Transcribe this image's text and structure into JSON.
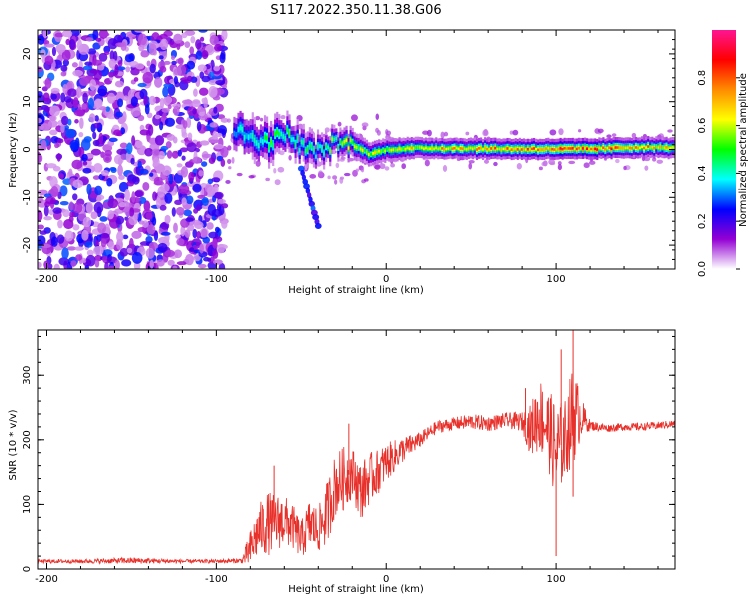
{
  "figure_title": "S117.2022.350.11.38.G06",
  "chart_data": [
    {
      "type": "heatmap",
      "title": "S117.2022.350.11.38.G06",
      "xlabel": "Height of straight line (km)",
      "ylabel": "Frequency (Hz)",
      "xlim": [
        -205,
        170
      ],
      "ylim": [
        -25,
        25
      ],
      "xticks": [
        -200,
        -100,
        0,
        100
      ],
      "yticks": [
        -20,
        -10,
        0,
        10,
        20
      ],
      "xtick_labels": [
        "-200",
        "-100",
        "0",
        "100"
      ],
      "ytick_labels": [
        "-20",
        "-10",
        "0",
        "10",
        "20"
      ],
      "noise_region": {
        "x": [
          -205,
          -95
        ],
        "y": [
          -25,
          25
        ],
        "amplitude": [
          0.05,
          0.3
        ]
      },
      "ridge": [
        {
          "x": -90,
          "f": 4,
          "width": 5,
          "amp": 0.35
        },
        {
          "x": -80,
          "f": 2.5,
          "width": 5,
          "amp": 0.45
        },
        {
          "x": -70,
          "f": 1.5,
          "width": 4.5,
          "amp": 0.5
        },
        {
          "x": -60,
          "f": 3.5,
          "width": 4,
          "amp": 0.5
        },
        {
          "x": -50,
          "f": 0.5,
          "width": 4,
          "amp": 0.5
        },
        {
          "x": -40,
          "f": -0.5,
          "width": 3.5,
          "amp": 0.45
        },
        {
          "x": -30,
          "f": 1.5,
          "width": 3,
          "amp": 0.55
        },
        {
          "x": -20,
          "f": 1,
          "width": 3,
          "amp": 0.6
        },
        {
          "x": -10,
          "f": -1,
          "width": 2.5,
          "amp": 0.6
        },
        {
          "x": 0,
          "f": 0,
          "width": 2.5,
          "amp": 0.65
        },
        {
          "x": 20,
          "f": 0.3,
          "width": 2.2,
          "amp": 0.7
        },
        {
          "x": 50,
          "f": 0.2,
          "width": 2.2,
          "amp": 0.75
        },
        {
          "x": 80,
          "f": 0.1,
          "width": 2.2,
          "amp": 0.8
        },
        {
          "x": 100,
          "f": 0.1,
          "width": 2.2,
          "amp": 0.85
        },
        {
          "x": 120,
          "f": 0.1,
          "width": 2.2,
          "amp": 0.85
        },
        {
          "x": 150,
          "f": 0.5,
          "width": 2.2,
          "amp": 0.75
        },
        {
          "x": 170,
          "f": 0.3,
          "width": 2.2,
          "amp": 0.7
        }
      ],
      "streak": {
        "x": [
          -50,
          -40
        ],
        "f": [
          -4,
          -16
        ]
      },
      "colorbar": {
        "label": "Normalized spectral amplitude",
        "range": [
          0,
          1
        ],
        "ticks": [
          0.0,
          0.2,
          0.4,
          0.6,
          0.8
        ],
        "tick_labels": [
          "0.0",
          "0.2",
          "0.4",
          "0.6",
          "0.8"
        ],
        "colors": [
          "#ffffff",
          "#9400d3",
          "#0000ff",
          "#00ffff",
          "#00ff00",
          "#ffff00",
          "#ff8c00",
          "#ff0000",
          "#ff1493"
        ]
      }
    },
    {
      "type": "line",
      "xlabel": "Height of straight line (km)",
      "ylabel": "SNR (10 * v/v)",
      "xlim": [
        -205,
        170
      ],
      "ylim": [
        0,
        370
      ],
      "xticks": [
        -200,
        -100,
        0,
        100
      ],
      "yticks": [
        0,
        100,
        200,
        300
      ],
      "xtick_labels": [
        "-200",
        "-100",
        "0",
        "100"
      ],
      "ytick_labels": [
        "0",
        "100",
        "200",
        "300"
      ],
      "color": "#e8302a",
      "series": [
        {
          "name": "SNR",
          "x": [
            -205,
            -180,
            -150,
            -120,
            -100,
            -85,
            -80,
            -75,
            -70,
            -60,
            -55,
            -50,
            -45,
            -40,
            -35,
            -30,
            -25,
            -20,
            -15,
            -10,
            -5,
            0,
            10,
            20,
            30,
            40,
            50,
            60,
            70,
            80,
            85,
            90,
            95,
            100,
            105,
            110,
            115,
            120,
            130,
            140,
            150,
            160,
            170
          ],
          "y": [
            12,
            12,
            13,
            12,
            12,
            13,
            30,
            60,
            70,
            75,
            65,
            45,
            70,
            60,
            85,
            130,
            140,
            150,
            120,
            140,
            150,
            165,
            185,
            200,
            220,
            225,
            228,
            225,
            230,
            228,
            215,
            240,
            220,
            180,
            200,
            240,
            235,
            222,
            218,
            220,
            220,
            222,
            225
          ],
          "noise": [
            3,
            3,
            5,
            3,
            3,
            4,
            30,
            40,
            50,
            40,
            35,
            30,
            40,
            35,
            50,
            50,
            50,
            40,
            45,
            40,
            35,
            30,
            20,
            12,
            10,
            10,
            12,
            12,
            12,
            15,
            40,
            60,
            60,
            80,
            60,
            80,
            30,
            8,
            6,
            6,
            6,
            6,
            6
          ]
        }
      ],
      "spikes": [
        {
          "x": -66,
          "y": 160
        },
        {
          "x": -22,
          "y": 225
        },
        {
          "x": 82,
          "y": 280
        },
        {
          "x": 103,
          "y": 340
        },
        {
          "x": 110,
          "y": 370
        },
        {
          "x": 100,
          "y": 20
        },
        {
          "x": 110,
          "y": 112
        }
      ]
    }
  ]
}
